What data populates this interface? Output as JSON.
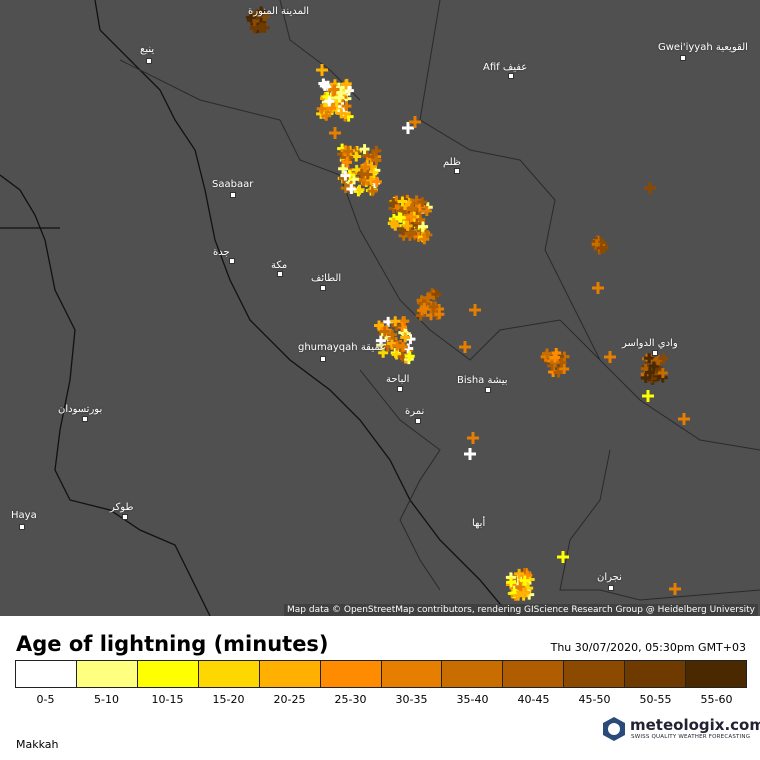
{
  "map": {
    "labels": [
      "المدينة المنورة",
      "ينبع",
      "Afif عفيف",
      "Gwei'iyyah القويعية",
      "ظلم",
      "Saabaar",
      "جدة",
      "مكة",
      "الطائف",
      "ghumayqah غميقة",
      "الباحة",
      "Bisha بيشة",
      "نمرة",
      "وادي الدواسر",
      "بورتسودان",
      "Haya",
      "طوكر",
      "أبها",
      "نجران"
    ],
    "attribution": "Map data © OpenStreetMap contributors, rendering GIScience Research Group @ Heidelberg University"
  },
  "legend": {
    "title": "Age of lightning (minutes)",
    "timestamp": "Thu 30/07/2020, 05:30pm GMT+03",
    "bins": [
      {
        "label": "0-5",
        "color": "#ffffff"
      },
      {
        "label": "5-10",
        "color": "#ffff80"
      },
      {
        "label": "10-15",
        "color": "#ffff00"
      },
      {
        "label": "15-20",
        "color": "#ffd700"
      },
      {
        "label": "20-25",
        "color": "#ffb000"
      },
      {
        "label": "25-30",
        "color": "#ff8c00"
      },
      {
        "label": "30-35",
        "color": "#e67e00"
      },
      {
        "label": "35-40",
        "color": "#c86e00"
      },
      {
        "label": "40-45",
        "color": "#b05c00"
      },
      {
        "label": "45-50",
        "color": "#8c4a00"
      },
      {
        "label": "50-55",
        "color": "#6e3a00"
      },
      {
        "label": "55-60",
        "color": "#4a2800"
      }
    ]
  },
  "footer": {
    "location": "Makkah",
    "brand": "meteologix.com",
    "tagline": "SWISS QUALITY WEATHER FORECASTING"
  }
}
